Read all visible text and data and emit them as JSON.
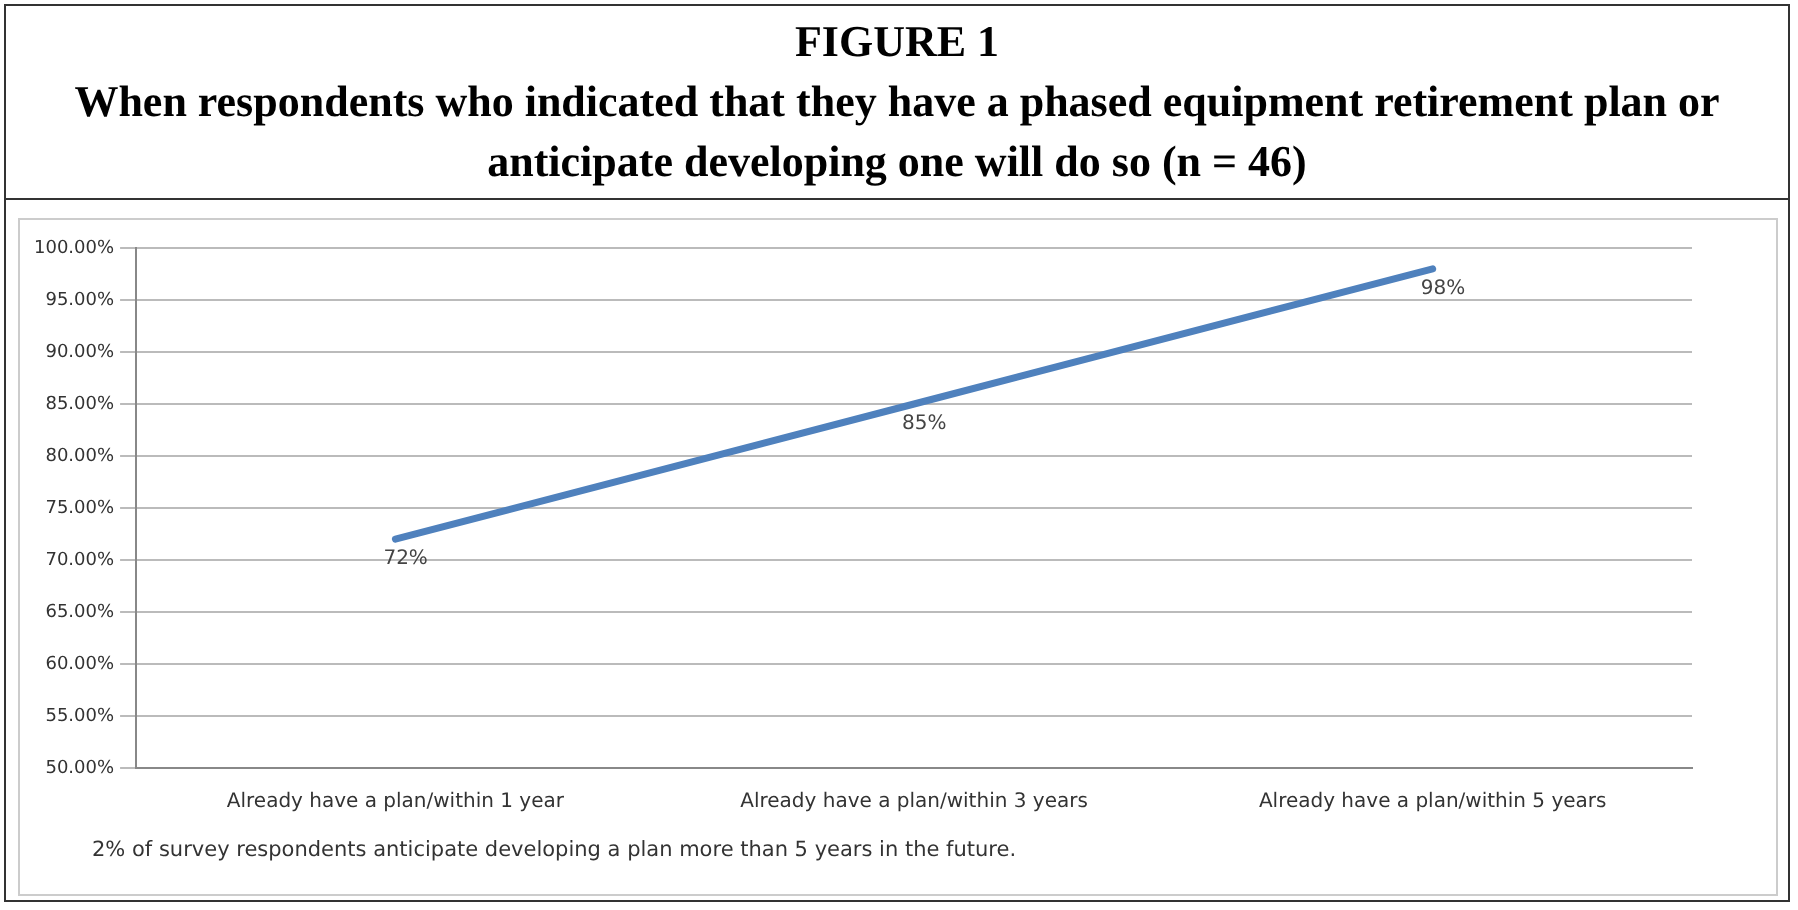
{
  "chart_data": {
    "type": "line",
    "title": "FIGURE 1",
    "subtitle": "When respondents who indicated that they have a phased equipment retirement plan or anticipate developing one will do so (n = 46)",
    "categories": [
      "Already have a plan/within 1 year",
      "Already have a plan/within 3 years",
      "Already have a plan/within 5 years"
    ],
    "series": [
      {
        "color": "#4f81bd",
        "values": [
          72,
          85,
          98
        ],
        "value_labels": [
          "72%",
          "85%",
          "98%"
        ]
      }
    ],
    "ylim": [
      50,
      100
    ],
    "yticks": [
      {
        "value": 50,
        "label": "50.00%"
      },
      {
        "value": 55,
        "label": "55.00%"
      },
      {
        "value": 60,
        "label": "60.00%"
      },
      {
        "value": 65,
        "label": "65.00%"
      },
      {
        "value": 70,
        "label": "70.00%"
      },
      {
        "value": 75,
        "label": "75.00%"
      },
      {
        "value": 80,
        "label": "80.00%"
      },
      {
        "value": 85,
        "label": "85.00%"
      },
      {
        "value": 90,
        "label": "90.00%"
      },
      {
        "value": 95,
        "label": "95.00%"
      },
      {
        "value": 100,
        "label": "100.00%"
      }
    ],
    "grid": "y",
    "legend": false,
    "marker": "none",
    "line_style": "solid",
    "annotations": [
      "2% of survey respondents anticipate developing a plan more than 5 years in the future."
    ]
  }
}
